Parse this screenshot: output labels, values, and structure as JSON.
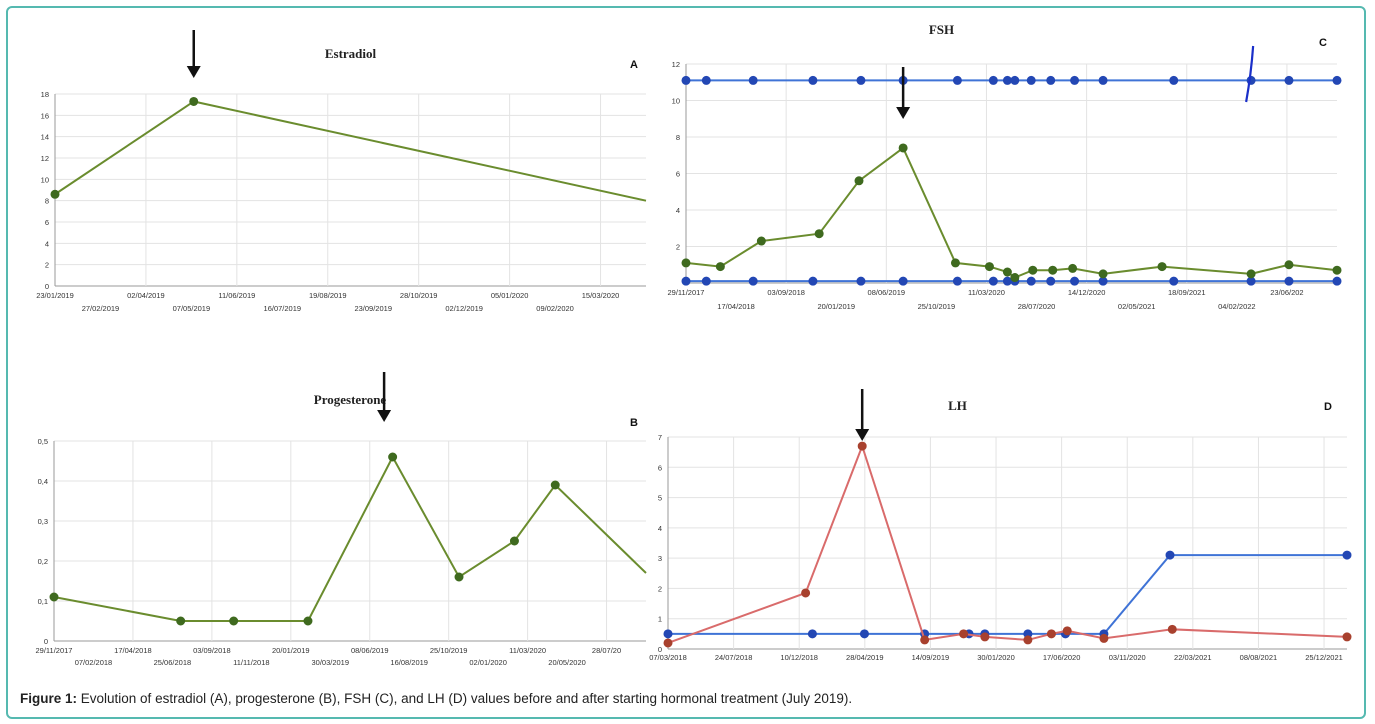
{
  "caption": {
    "label": "Figure 1:",
    "text": " Evolution of estradiol (A), progesterone (B), FSH (C), and LH (D) values before and after starting hormonal treatment (July 2019)."
  },
  "colors": {
    "green": "#6a8c2e",
    "green_dot": "#3f6a1f",
    "blue": "#3f73d6",
    "blue_dot": "#2347b4",
    "red": "#d96b6b",
    "red_dot": "#a8412e",
    "grid": "#e3e3e3",
    "arrow": "#111111",
    "teal_border": "#55b9b0",
    "marker_line": "#1a2fc9"
  },
  "chart_data": [
    {
      "id": "A",
      "type": "line",
      "title": "Estradiol",
      "panel_label": "A",
      "ylim": [
        0,
        18
      ],
      "yticks": [
        "0",
        "2",
        "4",
        "6",
        "8",
        "10",
        "12",
        "14",
        "16",
        "18"
      ],
      "xticks_top": [
        "23/01/2019",
        "02/04/2019",
        "11/06/2019",
        "19/08/2019",
        "28/10/2019",
        "05/01/2020",
        "15/03/2020"
      ],
      "xticks_bottom": [
        "27/02/2019",
        "07/05/2019",
        "16/07/2019",
        "23/09/2019",
        "02/12/2019",
        "09/02/2020"
      ],
      "x_range": [
        "2019-01-23",
        "2020-04-10"
      ],
      "series": [
        {
          "color": "green",
          "markers_x": [
            "2019-01-23",
            "2019-05-07"
          ],
          "x": [
            "2019-01-23",
            "2019-05-07",
            "2020-04-10"
          ],
          "values": [
            8.6,
            17.3,
            8.0
          ]
        }
      ],
      "arrow_x": "2019-05-07",
      "grid": true
    },
    {
      "id": "B",
      "type": "line",
      "title": "Progesterone",
      "panel_label": "B",
      "ylim": [
        0,
        0.5
      ],
      "yticks": [
        "0",
        "0,1",
        "0,2",
        "0,3",
        "0,4",
        "0,5"
      ],
      "xticks_top": [
        "29/11/2017",
        "17/04/2018",
        "03/09/2018",
        "20/01/2019",
        "08/06/2019",
        "25/10/2019",
        "11/03/2020",
        "28/07/20"
      ],
      "xticks_bottom": [
        "07/02/2018",
        "25/06/2018",
        "11/11/2018",
        "30/03/2019",
        "16/08/2019",
        "02/01/2020",
        "20/05/2020"
      ],
      "x_range": [
        "2017-11-29",
        "2020-07-28"
      ],
      "series": [
        {
          "color": "green",
          "markers_x": [
            "2017-11-29",
            "2018-06-25",
            "2018-09-20",
            "2019-01-20",
            "2019-06-08",
            "2019-09-25",
            "2019-12-25",
            "2020-03-01"
          ],
          "x": [
            "2017-11-29",
            "2018-06-25",
            "2018-09-20",
            "2019-01-20",
            "2019-06-08",
            "2019-09-25",
            "2019-12-25",
            "2020-03-01",
            "2020-07-28"
          ],
          "values": [
            0.11,
            0.05,
            0.05,
            0.05,
            0.46,
            0.16,
            0.25,
            0.39,
            0.17
          ]
        }
      ],
      "arrow_x": "2019-05-25",
      "grid": true
    },
    {
      "id": "C",
      "type": "line",
      "title": "FSH",
      "panel_label": "C",
      "ylim": [
        0,
        12
      ],
      "yticks": [
        "",
        "2",
        "4",
        "6",
        "8",
        "10",
        "12"
      ],
      "xticks_top": [
        "29/11/2017",
        "03/09/2018",
        "08/06/2019",
        "11/03/2020",
        "14/12/2020",
        "18/09/2021",
        "23/06/202"
      ],
      "xticks_bottom": [
        "17/04/2018",
        "20/01/2019",
        "25/10/2019",
        "28/07/2020",
        "02/05/2021",
        "04/02/2022"
      ],
      "x_range": [
        "2017-11-29",
        "2022-06-23"
      ],
      "series": [
        {
          "color": "blue",
          "x": [
            "2017-11-29",
            "2018-01-20",
            "2018-05-20",
            "2018-10-20",
            "2019-02-20",
            "2019-06-08",
            "2019-10-25",
            "2020-01-25",
            "2020-03-01",
            "2020-03-20",
            "2020-05-01",
            "2020-06-20",
            "2020-08-20",
            "2020-11-01",
            "2021-05-01",
            "2021-11-15",
            "2022-02-20",
            "2022-06-23"
          ],
          "values": [
            11.1,
            11.1,
            11.1,
            11.1,
            11.1,
            11.1,
            11.1,
            11.1,
            11.1,
            11.1,
            11.1,
            11.1,
            11.1,
            11.1,
            11.1,
            11.1,
            11.1,
            11.1
          ]
        },
        {
          "color": "blue",
          "x": [
            "2017-11-29",
            "2018-01-20",
            "2018-05-20",
            "2018-10-20",
            "2019-02-20",
            "2019-06-08",
            "2019-10-25",
            "2020-01-25",
            "2020-03-01",
            "2020-03-20",
            "2020-05-01",
            "2020-06-20",
            "2020-08-20",
            "2020-11-01",
            "2021-05-01",
            "2021-11-15",
            "2022-02-20",
            "2022-06-23"
          ],
          "values": [
            0.1,
            0.1,
            0.1,
            0.1,
            0.1,
            0.1,
            0.1,
            0.1,
            0.1,
            0.1,
            0.1,
            0.1,
            0.1,
            0.1,
            0.1,
            0.1,
            0.1,
            0.1
          ]
        },
        {
          "color": "green",
          "x": [
            "2017-11-29",
            "2018-02-25",
            "2018-06-10",
            "2018-11-05",
            "2019-02-15",
            "2019-06-08",
            "2019-10-20",
            "2020-01-15",
            "2020-03-01",
            "2020-03-20",
            "2020-05-05",
            "2020-06-25",
            "2020-08-15",
            "2020-11-01",
            "2021-04-01",
            "2021-11-15",
            "2022-02-20",
            "2022-06-23"
          ],
          "values": [
            1.1,
            0.9,
            2.3,
            2.7,
            5.6,
            7.4,
            1.1,
            0.9,
            0.6,
            0.3,
            0.7,
            0.7,
            0.8,
            0.5,
            0.9,
            0.5,
            1.0,
            0.7
          ]
        }
      ],
      "arrow_x": "2019-06-08",
      "marker_line_x": "2021-11-10",
      "grid": true
    },
    {
      "id": "D",
      "type": "line",
      "title": "LH",
      "panel_label": "D",
      "ylim": [
        0,
        7
      ],
      "yticks": [
        "0",
        "1",
        "2",
        "3",
        "4",
        "5",
        "6",
        "7"
      ],
      "xticks_top": [
        "07/03/2018",
        "24/07/2018",
        "10/12/2018",
        "28/04/2019",
        "14/09/2019",
        "30/01/2020",
        "17/06/2020",
        "03/11/2020",
        "22/03/2021",
        "08/08/2021",
        "25/12/2021"
      ],
      "x_range": [
        "2018-03-07",
        "2022-04-15"
      ],
      "series": [
        {
          "color": "blue",
          "x": [
            "2018-03-07",
            "2019-01-20",
            "2019-05-15",
            "2019-09-25",
            "2020-01-01",
            "2020-02-05",
            "2020-05-10",
            "2020-08-01",
            "2020-10-25",
            "2021-03-20",
            "2022-04-15"
          ],
          "values": [
            0.5,
            0.5,
            0.5,
            0.5,
            0.5,
            0.5,
            0.5,
            0.5,
            0.5,
            3.1,
            3.1
          ]
        },
        {
          "color": "red",
          "x": [
            "2018-03-07",
            "2019-01-05",
            "2019-05-10",
            "2019-09-25",
            "2019-12-20",
            "2020-02-05",
            "2020-05-10",
            "2020-07-01",
            "2020-08-05",
            "2020-10-25",
            "2021-03-25",
            "2022-04-15"
          ],
          "values": [
            0.2,
            1.85,
            6.7,
            0.3,
            0.5,
            0.4,
            0.3,
            0.5,
            0.6,
            0.35,
            0.65,
            0.4
          ]
        }
      ],
      "arrow_x": "2019-05-10",
      "grid": true
    }
  ]
}
